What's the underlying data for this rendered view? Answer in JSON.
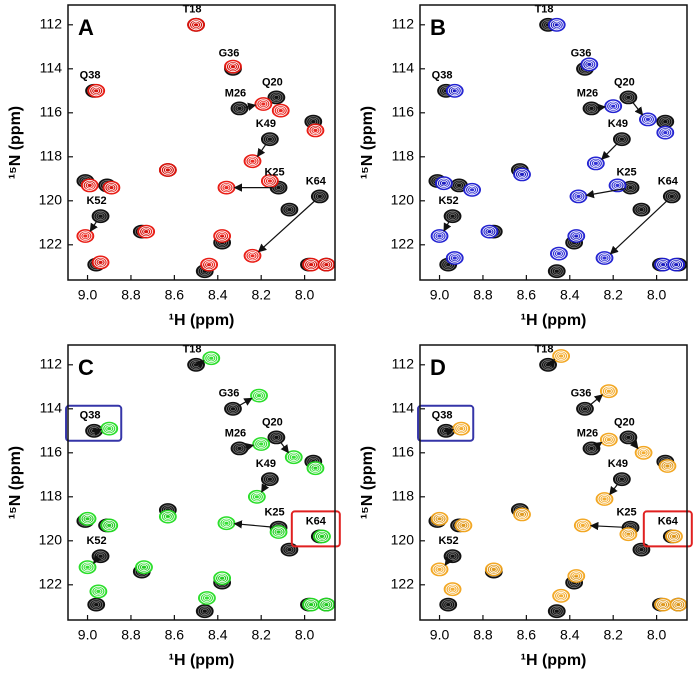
{
  "chart_data": [
    {
      "type": "nmr",
      "panel": "A",
      "xlabel": "¹H  (ppm)",
      "ylabel": "¹⁵N (ppm)",
      "xlim": [
        9.09,
        7.86
      ],
      "ylim": [
        123.6,
        111.1
      ],
      "xticks": [
        {
          "value": 9,
          "label": "9.0"
        },
        8.8,
        8.6,
        8.4,
        8.2,
        {
          "value": 8,
          "label": "8.0"
        }
      ],
      "yticks": [
        112,
        114,
        116,
        118,
        120,
        122
      ],
      "series": [
        {
          "color": "#111111",
          "labels": [
            "T18",
            "G36",
            "Q38",
            "M26",
            "Q20",
            "K49",
            "K25",
            "K64",
            "K52",
            null,
            null,
            null,
            null,
            null,
            null,
            null,
            null,
            null,
            null,
            null
          ],
          "x": [
            8.5,
            8.33,
            8.97,
            8.3,
            8.13,
            8.16,
            8.12,
            7.93,
            8.94,
            9.01,
            8.91,
            8.75,
            8.96,
            8.63,
            7.98,
            7.9,
            8.46,
            8.38,
            7.96,
            8.07
          ],
          "values": [
            112.0,
            114.0,
            115.0,
            115.8,
            115.3,
            117.2,
            119.4,
            119.8,
            120.7,
            119.1,
            119.3,
            121.4,
            122.9,
            118.6,
            122.9,
            122.9,
            123.2,
            121.9,
            116.4,
            120.4
          ]
        },
        {
          "color": "#e8140c",
          "x": [
            8.5,
            8.33,
            8.96,
            8.19,
            8.11,
            8.24,
            8.36,
            8.24,
            9.01,
            8.99,
            8.89,
            8.73,
            8.94,
            8.63,
            7.97,
            7.9,
            8.44,
            8.38,
            7.95,
            8.16
          ],
          "values": [
            112.0,
            113.9,
            115.0,
            115.6,
            115.9,
            118.2,
            119.4,
            122.5,
            121.6,
            119.3,
            119.4,
            121.4,
            122.8,
            118.6,
            122.9,
            122.9,
            122.9,
            121.6,
            116.8,
            119.1
          ]
        }
      ]
    },
    {
      "type": "nmr",
      "panel": "B",
      "xlabel": "¹H  (ppm)",
      "ylabel": "¹⁵N (ppm)",
      "xlim": [
        9.09,
        7.86
      ],
      "ylim": [
        123.6,
        111.1
      ],
      "xticks": [
        {
          "value": 9,
          "label": "9.0"
        },
        8.8,
        8.6,
        8.4,
        8.2,
        {
          "value": 8,
          "label": "8.0"
        }
      ],
      "yticks": [
        112,
        114,
        116,
        118,
        120,
        122
      ],
      "series": [
        {
          "color": "#111111",
          "labels": [
            "T18",
            "G36",
            "Q38",
            "M26",
            "Q20",
            "K49",
            "K25",
            "K64",
            "K52",
            null,
            null,
            null,
            null,
            null,
            null,
            null,
            null,
            null,
            null,
            null
          ],
          "x": [
            8.5,
            8.33,
            8.97,
            8.3,
            8.13,
            8.16,
            8.12,
            7.93,
            8.94,
            9.01,
            8.91,
            8.75,
            8.96,
            8.63,
            7.98,
            7.9,
            8.46,
            8.38,
            7.96,
            8.07
          ],
          "values": [
            112.0,
            114.0,
            115.0,
            115.8,
            115.3,
            117.2,
            119.4,
            119.8,
            120.7,
            119.1,
            119.3,
            121.4,
            122.9,
            118.6,
            122.9,
            122.9,
            123.2,
            121.9,
            116.4,
            120.4
          ]
        },
        {
          "color": "#1c1cd0",
          "x": [
            8.46,
            8.31,
            8.93,
            8.2,
            8.04,
            8.28,
            8.36,
            8.24,
            9.0,
            8.98,
            8.85,
            8.77,
            8.93,
            8.62,
            7.97,
            7.91,
            8.45,
            8.37,
            7.96,
            8.18
          ],
          "values": [
            112.0,
            113.8,
            115.0,
            115.7,
            116.3,
            118.3,
            119.8,
            122.6,
            121.6,
            119.2,
            119.5,
            121.4,
            122.6,
            118.8,
            122.9,
            122.9,
            122.4,
            121.6,
            116.9,
            119.3
          ]
        }
      ]
    },
    {
      "type": "nmr",
      "panel": "C",
      "xlabel": "¹H  (ppm)",
      "ylabel": "¹⁵N (ppm)",
      "xlim": [
        9.09,
        7.86
      ],
      "ylim": [
        123.6,
        111.1
      ],
      "xticks": [
        {
          "value": 9,
          "label": "9.0"
        },
        8.8,
        8.6,
        8.4,
        8.2,
        {
          "value": 8,
          "label": "8.0"
        }
      ],
      "yticks": [
        112,
        114,
        116,
        118,
        120,
        122
      ],
      "series": [
        {
          "color": "#111111",
          "labels": [
            "T18",
            "G36",
            "Q38",
            "M26",
            "Q20",
            "K49",
            "K25",
            "K64",
            "K52",
            null,
            null,
            null,
            null,
            null,
            null,
            null,
            null,
            null,
            null,
            null
          ],
          "boxes": [
            null,
            null,
            "#3535a8",
            null,
            null,
            null,
            null,
            "#e02020",
            null,
            null,
            null,
            null,
            null,
            null,
            null,
            null,
            null,
            null,
            null,
            null
          ],
          "x": [
            8.5,
            8.33,
            8.97,
            8.3,
            8.13,
            8.16,
            8.12,
            7.93,
            8.94,
            9.01,
            8.91,
            8.75,
            8.96,
            8.63,
            7.98,
            7.9,
            8.46,
            8.38,
            7.96,
            8.07
          ],
          "values": [
            112.0,
            114.0,
            115.0,
            115.8,
            115.3,
            117.2,
            119.4,
            119.8,
            120.7,
            119.1,
            119.3,
            121.4,
            122.9,
            118.6,
            122.9,
            122.9,
            123.2,
            121.9,
            116.4,
            120.4
          ]
        },
        {
          "color": "#22dd22",
          "x": [
            8.43,
            8.21,
            8.9,
            8.2,
            8.05,
            8.22,
            8.36,
            7.92,
            9.0,
            9.0,
            8.9,
            8.74,
            8.95,
            8.63,
            7.97,
            7.9,
            8.45,
            8.38,
            7.95,
            8.12
          ],
          "values": [
            111.7,
            113.4,
            114.9,
            115.6,
            116.2,
            118.0,
            119.2,
            119.8,
            121.2,
            119.0,
            119.3,
            121.2,
            122.3,
            118.9,
            122.9,
            122.9,
            122.6,
            121.7,
            116.7,
            119.6
          ]
        }
      ]
    },
    {
      "type": "nmr",
      "panel": "D",
      "xlabel": "¹H  (ppm)",
      "ylabel": "¹⁵N (ppm)",
      "xlim": [
        9.09,
        7.86
      ],
      "ylim": [
        123.6,
        111.1
      ],
      "xticks": [
        {
          "value": 9,
          "label": "9.0"
        },
        8.8,
        8.6,
        8.4,
        8.2,
        {
          "value": 8,
          "label": "8.0"
        }
      ],
      "yticks": [
        112,
        114,
        116,
        118,
        120,
        122
      ],
      "series": [
        {
          "color": "#111111",
          "labels": [
            "T18",
            "G36",
            "Q38",
            "M26",
            "Q20",
            "K49",
            "K25",
            "K64",
            "K52",
            null,
            null,
            null,
            null,
            null,
            null,
            null,
            null,
            null,
            null,
            null
          ],
          "boxes": [
            null,
            null,
            "#3535a8",
            null,
            null,
            null,
            null,
            "#e02020",
            null,
            null,
            null,
            null,
            null,
            null,
            null,
            null,
            null,
            null,
            null,
            null
          ],
          "x": [
            8.5,
            8.33,
            8.97,
            8.3,
            8.13,
            8.16,
            8.12,
            7.93,
            8.94,
            9.01,
            8.91,
            8.75,
            8.96,
            8.63,
            7.98,
            7.9,
            8.46,
            8.38,
            7.96,
            8.07
          ],
          "values": [
            112.0,
            114.0,
            115.0,
            115.8,
            115.3,
            117.2,
            119.4,
            119.8,
            120.7,
            119.1,
            119.3,
            121.4,
            122.9,
            118.6,
            122.9,
            122.9,
            123.2,
            121.9,
            116.4,
            120.4
          ]
        },
        {
          "color": "#f2a41c",
          "x": [
            8.44,
            8.22,
            8.9,
            8.22,
            8.06,
            8.24,
            8.34,
            7.92,
            9.0,
            9.0,
            8.89,
            8.75,
            8.94,
            8.62,
            7.97,
            7.9,
            8.44,
            8.37,
            7.95,
            8.13
          ],
          "values": [
            111.6,
            113.2,
            114.9,
            115.4,
            116.0,
            118.1,
            119.3,
            119.8,
            121.3,
            119.0,
            119.3,
            121.3,
            122.2,
            118.8,
            122.9,
            122.9,
            122.5,
            121.6,
            116.6,
            119.7
          ]
        }
      ]
    }
  ]
}
